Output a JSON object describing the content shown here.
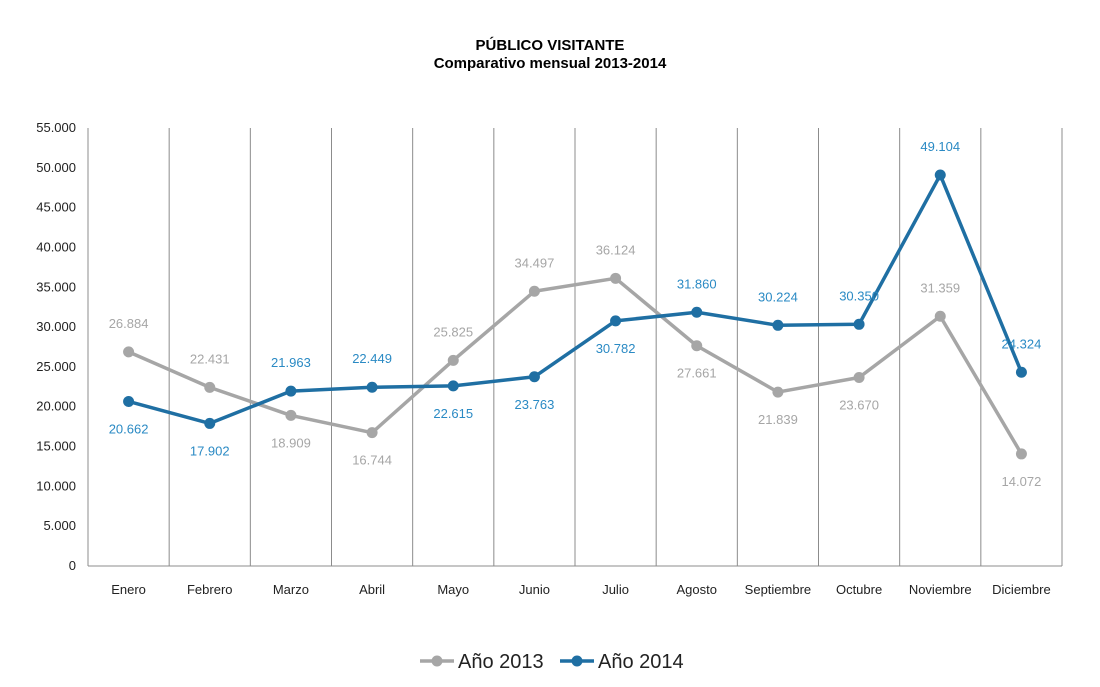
{
  "chart_data": {
    "type": "line",
    "title": "PÚBLICO VISITANTE",
    "subtitle": "Comparativo mensual 2013-2014",
    "xlabel": "",
    "ylabel": "",
    "categories": [
      "Enero",
      "Febrero",
      "Marzo",
      "Abril",
      "Mayo",
      "Junio",
      "Julio",
      "Agosto",
      "Septiembre",
      "Octubre",
      "Noviembre",
      "Diciembre"
    ],
    "ylim": [
      0,
      55000
    ],
    "ytick_step": 5000,
    "ytick_labels": [
      "0",
      "5.000",
      "10.000",
      "15.000",
      "20.000",
      "25.000",
      "30.000",
      "35.000",
      "40.000",
      "45.000",
      "50.000",
      "55.000"
    ],
    "grid": "vertical",
    "legend": "bottom-center",
    "series": [
      {
        "name": "Año 2013",
        "color": "#a6a6a6",
        "values": [
          26884,
          22431,
          18909,
          16744,
          25825,
          34497,
          36124,
          27661,
          21839,
          23670,
          31359,
          14072
        ],
        "labels": [
          "26.884",
          "22.431",
          "18.909",
          "16.744",
          "25.825",
          "34.497",
          "36.124",
          "27.661",
          "21.839",
          "23.670",
          "31.359",
          "14.072"
        ],
        "label_pos": [
          "above",
          "above",
          "below",
          "below",
          "above",
          "above",
          "above",
          "below",
          "below",
          "below",
          "above",
          "below"
        ]
      },
      {
        "name": "Año 2014",
        "color": "#1f6fa3",
        "label_color": "#2a8ac4",
        "values": [
          20662,
          17902,
          21963,
          22449,
          22615,
          23763,
          30782,
          31860,
          30224,
          30350,
          49104,
          24324
        ],
        "labels": [
          "20.662",
          "17.902",
          "21.963",
          "22.449",
          "22.615",
          "23.763",
          "30.782",
          "31.860",
          "30.224",
          "30.350",
          "49.104",
          "24.324"
        ],
        "label_pos": [
          "below",
          "below",
          "above",
          "above",
          "below",
          "below",
          "below",
          "above",
          "above",
          "above",
          "above",
          "above"
        ]
      }
    ]
  }
}
